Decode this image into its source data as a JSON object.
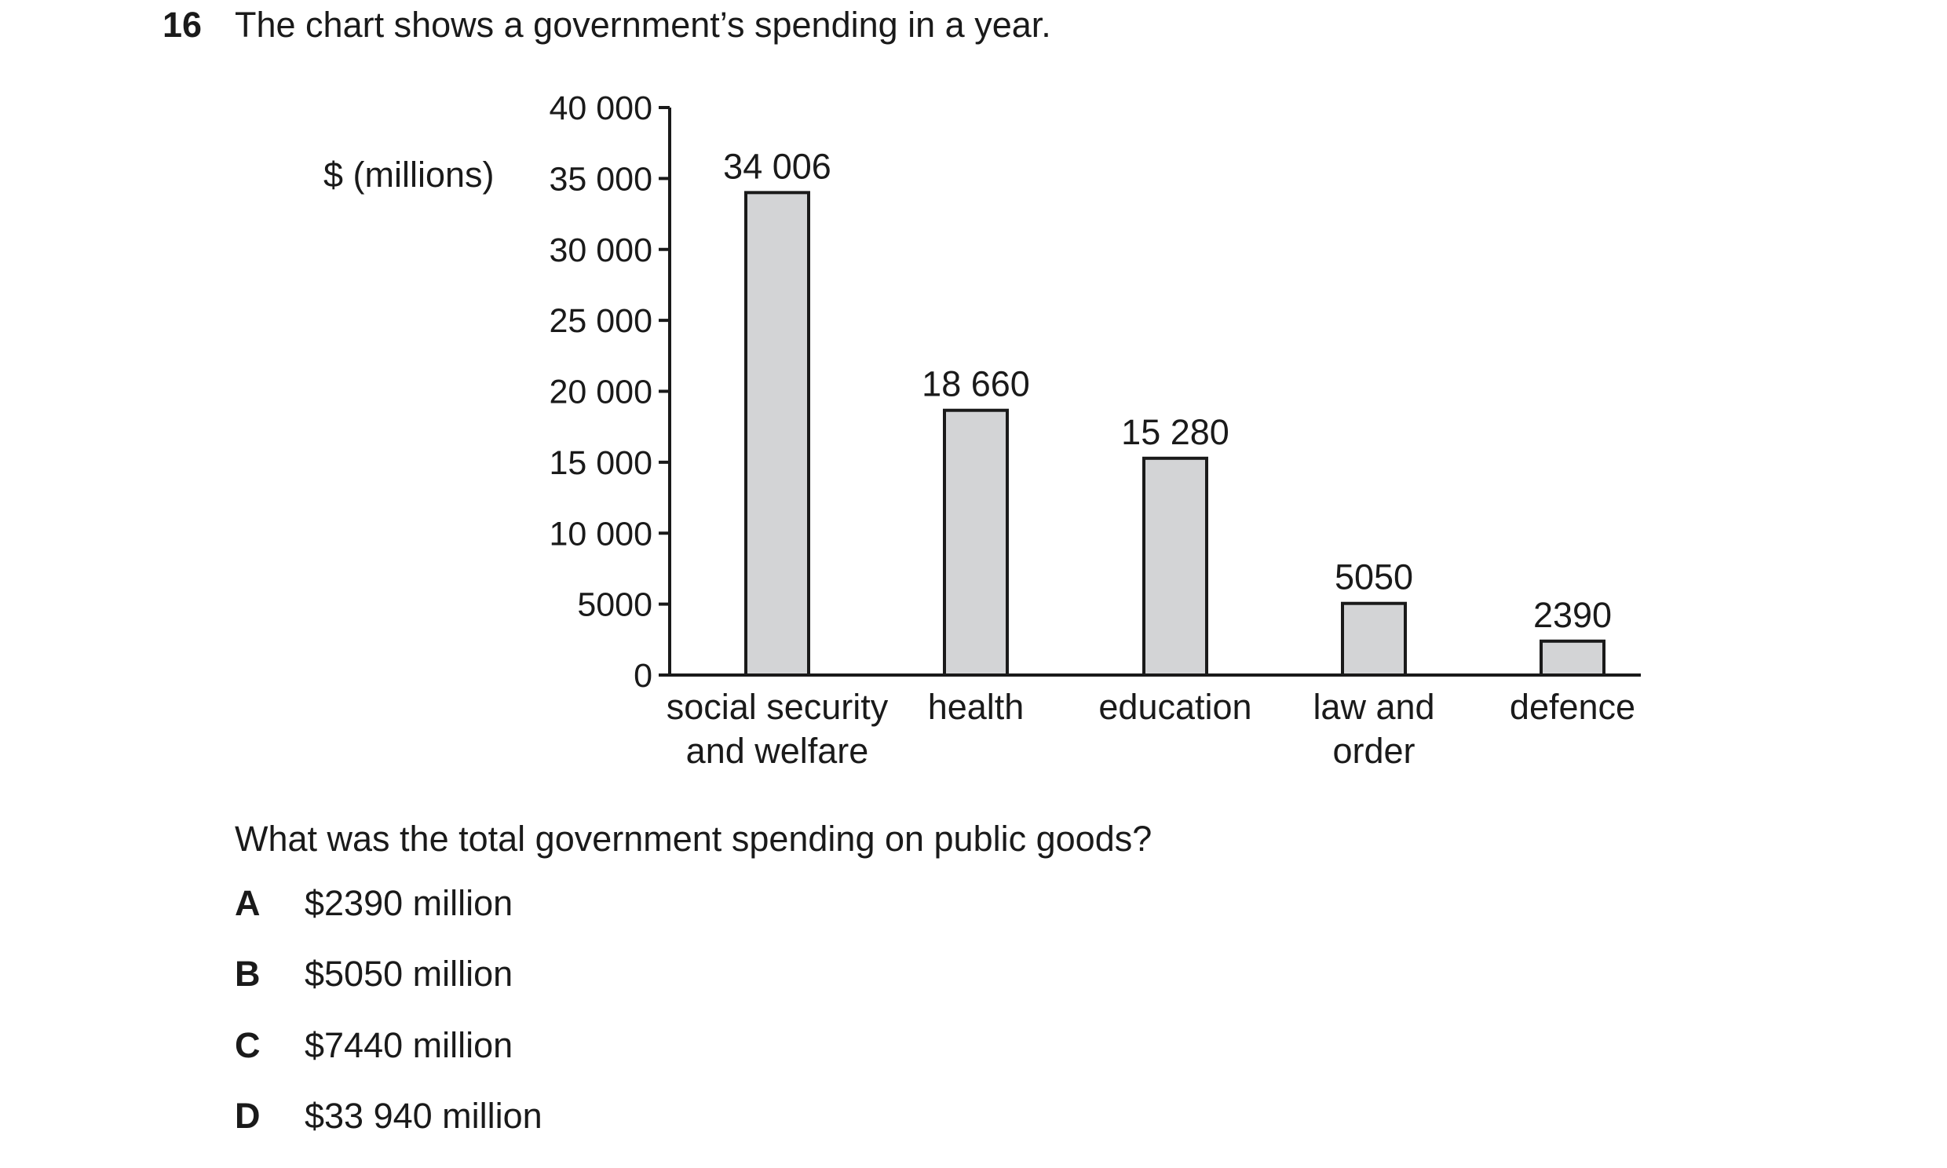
{
  "question": {
    "number": "16",
    "stem": "The chart shows a government’s spending in a year.",
    "prompt": "What was the total government spending on public goods?"
  },
  "options": [
    {
      "letter": "A",
      "text": "$2390 million"
    },
    {
      "letter": "B",
      "text": "$5050 million"
    },
    {
      "letter": "C",
      "text": "$7440 million"
    },
    {
      "letter": "D",
      "text": "$33 940 million"
    }
  ],
  "chart_data": {
    "type": "bar",
    "ylabel": "$ (millions)",
    "xlabel": "",
    "title": "",
    "ylim": [
      0,
      40000
    ],
    "yticks": [
      0,
      5000,
      10000,
      15000,
      20000,
      25000,
      30000,
      35000,
      40000
    ],
    "ytick_labels": [
      "0",
      "5000",
      "10 000",
      "15 000",
      "20 000",
      "25 000",
      "30 000",
      "35 000",
      "40 000"
    ],
    "categories": [
      "social security and welfare",
      "health",
      "education",
      "law and order",
      "defence"
    ],
    "category_label_lines": [
      [
        "social security",
        "and welfare"
      ],
      [
        "health"
      ],
      [
        "education"
      ],
      [
        "law and",
        "order"
      ],
      [
        "defence"
      ]
    ],
    "values": [
      34006,
      18660,
      15280,
      5050,
      2390
    ],
    "data_labels": [
      "34 006",
      "18 660",
      "15 280",
      "5050",
      "2390"
    ],
    "grid": false,
    "legend": "none",
    "colors": {
      "bar_fill": "#d3d4d6",
      "bar_stroke": "#1a1a1a"
    }
  }
}
